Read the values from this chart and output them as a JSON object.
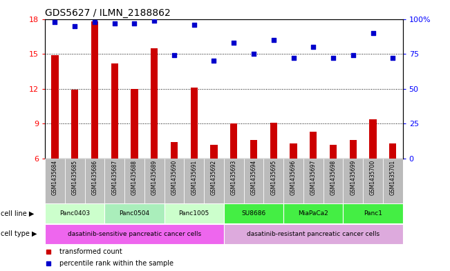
{
  "title": "GDS5627 / ILMN_2188862",
  "samples": [
    "GSM1435684",
    "GSM1435685",
    "GSM1435686",
    "GSM1435687",
    "GSM1435688",
    "GSM1435689",
    "GSM1435690",
    "GSM1435691",
    "GSM1435692",
    "GSM1435693",
    "GSM1435694",
    "GSM1435695",
    "GSM1435696",
    "GSM1435697",
    "GSM1435698",
    "GSM1435699",
    "GSM1435700",
    "GSM1435701"
  ],
  "bar_values": [
    14.9,
    11.9,
    17.8,
    14.2,
    12.0,
    15.5,
    7.4,
    12.1,
    7.2,
    9.0,
    7.6,
    9.1,
    7.3,
    8.3,
    7.2,
    7.6,
    9.4,
    7.3
  ],
  "dot_values": [
    98,
    95,
    98,
    97,
    97,
    99,
    74,
    96,
    70,
    83,
    75,
    85,
    72,
    80,
    72,
    74,
    90,
    72
  ],
  "bar_color": "#cc0000",
  "dot_color": "#0000cc",
  "ylim_left": [
    6,
    18
  ],
  "ylim_right": [
    0,
    100
  ],
  "yticks_left": [
    6,
    9,
    12,
    15,
    18
  ],
  "yticks_right": [
    0,
    25,
    50,
    75,
    100
  ],
  "ytick_labels_right": [
    "0",
    "25",
    "50",
    "75",
    "100%"
  ],
  "cell_lines": [
    {
      "label": "Panc0403",
      "start": 0,
      "end": 2,
      "color": "#ccffcc"
    },
    {
      "label": "Panc0504",
      "start": 3,
      "end": 5,
      "color": "#aaeebb"
    },
    {
      "label": "Panc1005",
      "start": 6,
      "end": 8,
      "color": "#ccffcc"
    },
    {
      "label": "SU8686",
      "start": 9,
      "end": 11,
      "color": "#44ee44"
    },
    {
      "label": "MiaPaCa2",
      "start": 12,
      "end": 14,
      "color": "#44ee44"
    },
    {
      "label": "Panc1",
      "start": 15,
      "end": 17,
      "color": "#44ee44"
    }
  ],
  "cell_types": [
    {
      "label": "dasatinib-sensitive pancreatic cancer cells",
      "start": 0,
      "end": 8,
      "color": "#ee66ee"
    },
    {
      "label": "dasatinib-resistant pancreatic cancer cells",
      "start": 9,
      "end": 17,
      "color": "#ddaadd"
    }
  ],
  "legend_items": [
    {
      "label": "transformed count",
      "color": "#cc0000"
    },
    {
      "label": "percentile rank within the sample",
      "color": "#0000cc"
    }
  ],
  "background_color": "#ffffff",
  "sample_bg_color": "#bbbbbb",
  "bar_bottom": 6,
  "bar_width": 0.35
}
